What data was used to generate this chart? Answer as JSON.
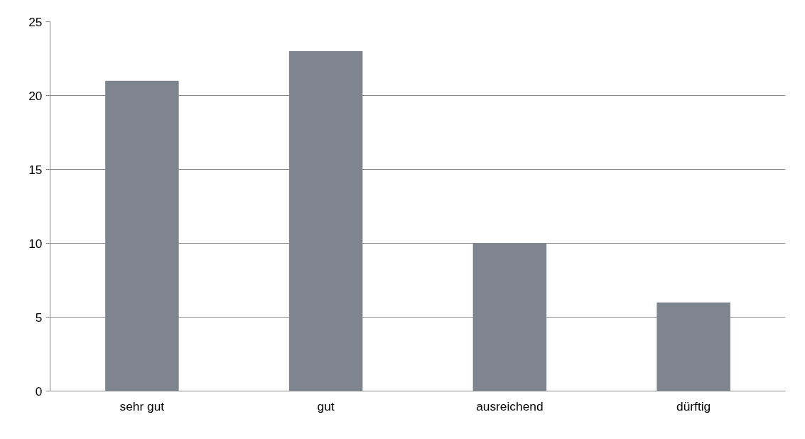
{
  "chart_data": {
    "type": "bar",
    "categories": [
      "sehr gut",
      "gut",
      "ausreichend",
      "dürftig"
    ],
    "values": [
      21,
      23,
      10,
      6
    ],
    "color": "#7f858f",
    "ylim": [
      0,
      25
    ],
    "yticks": [
      0,
      5,
      10,
      15,
      20,
      25
    ],
    "grid": "y"
  }
}
